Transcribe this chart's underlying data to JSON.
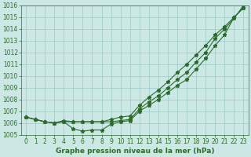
{
  "series1": [
    1006.5,
    1006.3,
    1006.1,
    1006.0,
    1006.2,
    1006.1,
    1006.1,
    1006.1,
    1006.1,
    1006.3,
    1006.5,
    1006.6,
    1007.5,
    1008.2,
    1008.8,
    1009.5,
    1010.3,
    1011.0,
    1011.8,
    1012.6,
    1013.5,
    1014.2,
    1015.0,
    1015.8
  ],
  "series2": [
    1006.5,
    1006.3,
    1006.1,
    1006.0,
    1006.1,
    1005.5,
    1005.3,
    1005.4,
    1005.4,
    1005.9,
    1006.1,
    1006.2,
    1007.0,
    1007.5,
    1008.0,
    1008.6,
    1009.2,
    1009.7,
    1010.6,
    1011.5,
    1012.6,
    1013.5,
    1015.0,
    1015.8
  ],
  "series3": [
    1006.5,
    1006.3,
    1006.1,
    1006.0,
    1006.1,
    1006.1,
    1006.1,
    1006.1,
    1006.1,
    1006.1,
    1006.2,
    1006.3,
    1007.2,
    1007.8,
    1008.3,
    1009.0,
    1009.7,
    1010.3,
    1011.2,
    1012.0,
    1013.2,
    1014.0,
    1014.9,
    1016.0
  ],
  "x": [
    0,
    1,
    2,
    3,
    4,
    5,
    6,
    7,
    8,
    9,
    10,
    11,
    12,
    13,
    14,
    15,
    16,
    17,
    18,
    19,
    20,
    21,
    22,
    23
  ],
  "line_color": "#2d6a2d",
  "bg_color": "#cce8e4",
  "grid_color": "#9cc8c4",
  "xlabel": "Graphe pression niveau de la mer (hPa)",
  "ylim": [
    1005,
    1016
  ],
  "xlim": [
    -0.5,
    23.5
  ],
  "yticks": [
    1005,
    1006,
    1007,
    1008,
    1009,
    1010,
    1011,
    1012,
    1013,
    1014,
    1015,
    1016
  ],
  "xticks": [
    0,
    1,
    2,
    3,
    4,
    5,
    6,
    7,
    8,
    9,
    10,
    11,
    12,
    13,
    14,
    15,
    16,
    17,
    18,
    19,
    20,
    21,
    22,
    23
  ],
  "tick_fontsize": 5.5,
  "xlabel_fontsize": 6.5
}
